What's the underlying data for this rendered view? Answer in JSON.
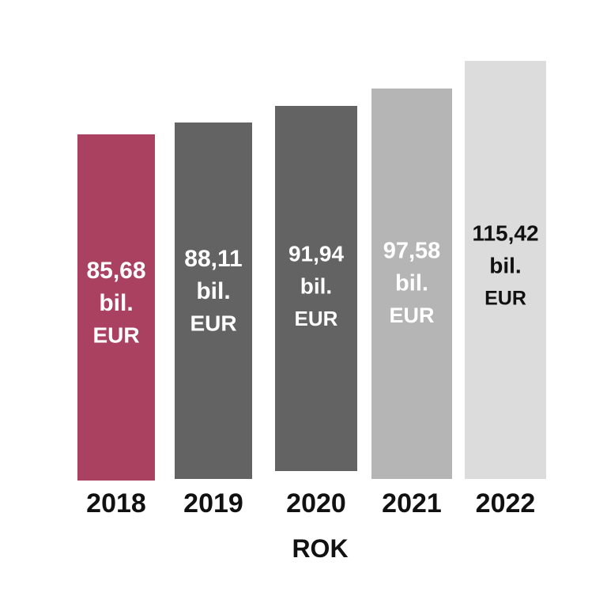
{
  "chart_data": {
    "type": "bar",
    "xlabel": "ROK",
    "categories": [
      "2018",
      "2019",
      "2020",
      "2021",
      "2022"
    ],
    "values": [
      85.68,
      88.11,
      91.94,
      97.58,
      115.42
    ],
    "value_labels": [
      "85,68",
      "88,11",
      "91,94",
      "97,58",
      "115,42"
    ],
    "unit_line1": "bil.",
    "unit_line2": "EUR",
    "bar_colors": [
      "#aa4160",
      "#636363",
      "#636363",
      "#b5b5b5",
      "#dcdcdc"
    ],
    "label_colors": [
      "#ffffff",
      "#ffffff",
      "#ffffff",
      "#ffffff",
      "#111111"
    ],
    "grid": false,
    "legend": "none"
  }
}
